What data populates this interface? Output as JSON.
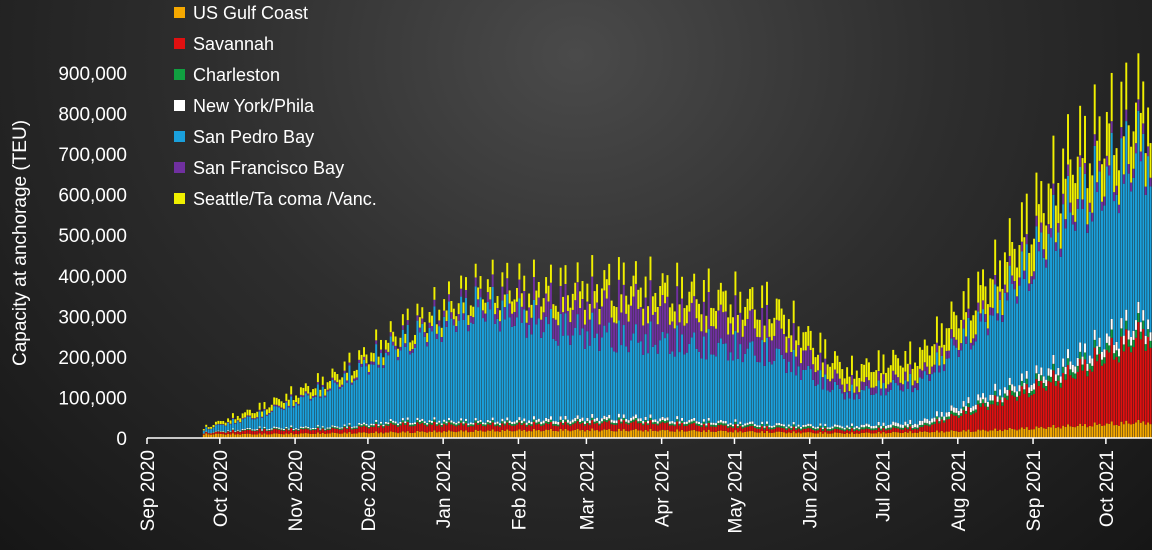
{
  "chart_data": {
    "type": "bar",
    "stacked": true,
    "ylabel": "Capacity at anchorage (TEU)",
    "ylim": [
      0,
      900000
    ],
    "yticks": [
      "0",
      "100,000",
      "200,000",
      "300,000",
      "400,000",
      "500,000",
      "600,000",
      "700,000",
      "800,000",
      "900,000"
    ],
    "xlim": [
      "2020-09-01",
      "2021-10-20"
    ],
    "xticks": [
      "Sep 2020",
      "Oct 2020",
      "Nov 2020",
      "Dec 2020",
      "Jan 2021",
      "Feb 2021",
      "Mar 2021",
      "Apr 2021",
      "May 2021",
      "Jun 2021",
      "Jul 2021",
      "Aug 2021",
      "Sep 2021",
      "Oct 2021"
    ],
    "legend_position": "top-left",
    "grid": false,
    "series": [
      {
        "name": "US Gulf Coast",
        "color": "#f5a800"
      },
      {
        "name": "Savannah",
        "color": "#e01010"
      },
      {
        "name": "Charleston",
        "color": "#10a040"
      },
      {
        "name": "New York/Phila",
        "color": "#ffffff"
      },
      {
        "name": "San Pedro Bay",
        "color": "#1aa0dc"
      },
      {
        "name": "San Francisco Bay",
        "color": "#7030a0"
      },
      {
        "name": "Seattle/Ta coma /Vanc.",
        "color": "#f0f000"
      }
    ],
    "monthly_values": {
      "months": [
        "Sep 2020",
        "Oct 2020",
        "Nov 2020",
        "Dec 2020",
        "Jan 2021",
        "Feb 2021",
        "Mar 2021",
        "Apr 2021",
        "May 2021",
        "Jun 2021",
        "Jul 2021",
        "Aug 2021",
        "Sep 2021",
        "Oct 2021"
      ],
      "US Gulf Coast": [
        10000,
        10000,
        12000,
        15000,
        18000,
        20000,
        20000,
        18000,
        15000,
        12000,
        15000,
        20000,
        30000,
        40000
      ],
      "Savannah": [
        0,
        10000,
        10000,
        20000,
        15000,
        15000,
        20000,
        15000,
        10000,
        8000,
        10000,
        70000,
        130000,
        220000
      ],
      "Charleston": [
        0,
        2000,
        3000,
        5000,
        5000,
        5000,
        5000,
        5000,
        5000,
        5000,
        5000,
        10000,
        15000,
        20000
      ],
      "New York/Phila": [
        0,
        3000,
        3000,
        5000,
        5000,
        8000,
        8000,
        6000,
        5000,
        5000,
        10000,
        15000,
        20000,
        25000
      ],
      "San Pedro Bay": [
        0,
        30000,
        100000,
        200000,
        290000,
        230000,
        200000,
        190000,
        180000,
        80000,
        100000,
        210000,
        380000,
        420000
      ],
      "San Francisco Bay": [
        0,
        3000,
        5000,
        10000,
        20000,
        60000,
        90000,
        80000,
        70000,
        20000,
        20000,
        20000,
        25000,
        25000
      ],
      "Seattle/Ta coma /Vanc.": [
        0,
        15000,
        20000,
        25000,
        30000,
        40000,
        50000,
        50000,
        50000,
        40000,
        50000,
        75000,
        110000,
        100000
      ]
    }
  }
}
